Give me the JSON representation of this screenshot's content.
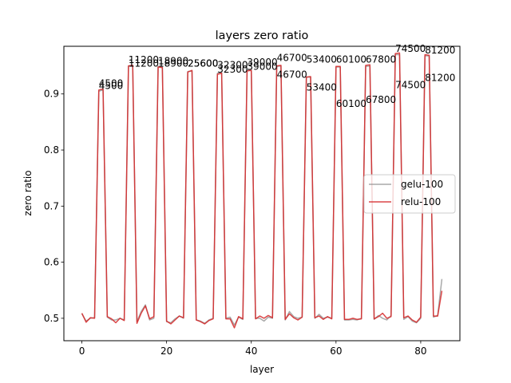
{
  "chart_data": {
    "type": "line",
    "title": "layers zero ratio",
    "xlabel": "layer",
    "ylabel": "zero ratio",
    "xlim": [
      -4.25,
      89.25
    ],
    "ylim": [
      0.46,
      0.985
    ],
    "xticks": [
      0,
      20,
      40,
      60,
      80
    ],
    "yticks": [
      0.5,
      0.6,
      0.7,
      0.8,
      0.9
    ],
    "ytick_labels": [
      "0.5",
      "0.6",
      "0.7",
      "0.8",
      "0.9"
    ],
    "grid": false,
    "legend": {
      "position": "center-right"
    },
    "colors": {
      "gelu-100": "#8c8c8c",
      "relu-100": "#d62728"
    },
    "series": [
      {
        "name": "gelu-100",
        "x": [
          0,
          1,
          2,
          3,
          4,
          5,
          6,
          7,
          8,
          9,
          10,
          11,
          12,
          13,
          14,
          15,
          16,
          17,
          18,
          19,
          20,
          21,
          22,
          23,
          24,
          25,
          26,
          27,
          28,
          29,
          30,
          31,
          32,
          33,
          34,
          35,
          36,
          37,
          38,
          39,
          40,
          41,
          42,
          43,
          44,
          45,
          46,
          47,
          48,
          49,
          50,
          51,
          52,
          53,
          54,
          55,
          56,
          57,
          58,
          59,
          60,
          61,
          62,
          63,
          64,
          65,
          66,
          67,
          68,
          69,
          70,
          71,
          72,
          73,
          74,
          75,
          76,
          77,
          78,
          79,
          80,
          81,
          82,
          83,
          84,
          85
        ],
        "y": [
          0.508,
          0.495,
          0.5,
          0.501,
          0.905,
          0.907,
          0.502,
          0.497,
          0.497,
          0.5,
          0.497,
          0.95,
          0.95,
          0.494,
          0.512,
          0.524,
          0.497,
          0.5,
          0.949,
          0.949,
          0.494,
          0.492,
          0.499,
          0.504,
          0.5,
          0.94,
          0.941,
          0.497,
          0.495,
          0.491,
          0.497,
          0.5,
          0.937,
          0.938,
          0.5,
          0.502,
          0.488,
          0.502,
          0.498,
          0.942,
          0.943,
          0.5,
          0.5,
          0.495,
          0.502,
          0.5,
          0.949,
          0.95,
          0.497,
          0.512,
          0.503,
          0.5,
          0.502,
          0.93,
          0.93,
          0.5,
          0.507,
          0.5,
          0.502,
          0.5,
          0.948,
          0.948,
          0.497,
          0.497,
          0.498,
          0.497,
          0.5,
          0.949,
          0.95,
          0.498,
          0.505,
          0.5,
          0.497,
          0.505,
          0.97,
          0.97,
          0.498,
          0.503,
          0.495,
          0.492,
          0.5,
          0.968,
          0.968,
          0.502,
          0.505,
          0.57
        ]
      },
      {
        "name": "relu-100",
        "x": [
          0,
          1,
          2,
          3,
          4,
          5,
          6,
          7,
          8,
          9,
          10,
          11,
          12,
          13,
          14,
          15,
          16,
          17,
          18,
          19,
          20,
          21,
          22,
          23,
          24,
          25,
          26,
          27,
          28,
          29,
          30,
          31,
          32,
          33,
          34,
          35,
          36,
          37,
          38,
          39,
          40,
          41,
          42,
          43,
          44,
          45,
          46,
          47,
          48,
          49,
          50,
          51,
          52,
          53,
          54,
          55,
          56,
          57,
          58,
          59,
          60,
          61,
          62,
          63,
          64,
          65,
          66,
          67,
          68,
          69,
          70,
          71,
          72,
          73,
          74,
          75,
          76,
          77,
          78,
          79,
          80,
          81,
          82,
          83,
          84,
          85
        ],
        "y": [
          0.509,
          0.493,
          0.501,
          0.5,
          0.907,
          0.909,
          0.503,
          0.499,
          0.492,
          0.5,
          0.496,
          0.95,
          0.951,
          0.491,
          0.509,
          0.522,
          0.499,
          0.503,
          0.948,
          0.947,
          0.495,
          0.49,
          0.497,
          0.504,
          0.501,
          0.939,
          0.942,
          0.497,
          0.494,
          0.49,
          0.496,
          0.499,
          0.935,
          0.937,
          0.499,
          0.499,
          0.483,
          0.503,
          0.499,
          0.941,
          0.942,
          0.499,
          0.504,
          0.5,
          0.505,
          0.501,
          0.95,
          0.951,
          0.498,
          0.508,
          0.501,
          0.497,
          0.502,
          0.93,
          0.931,
          0.501,
          0.504,
          0.498,
          0.503,
          0.499,
          0.949,
          0.949,
          0.498,
          0.498,
          0.5,
          0.498,
          0.499,
          0.951,
          0.952,
          0.499,
          0.503,
          0.509,
          0.5,
          0.503,
          0.972,
          0.973,
          0.501,
          0.504,
          0.497,
          0.493,
          0.502,
          0.97,
          0.969,
          0.504,
          0.504,
          0.549
        ]
      }
    ],
    "annotations": [
      {
        "text": "4500",
        "x": 4.0,
        "y": 0.913
      },
      {
        "text": "4500",
        "x": 4.0,
        "y": 0.909
      },
      {
        "text": "11200",
        "x": 11.0,
        "y": 0.955
      },
      {
        "text": "11200",
        "x": 11.0,
        "y": 0.949
      },
      {
        "text": "18900",
        "x": 18.0,
        "y": 0.953
      },
      {
        "text": "18900",
        "x": 18.0,
        "y": 0.949
      },
      {
        "text": "25600",
        "x": 25.0,
        "y": 0.949
      },
      {
        "text": "25600",
        "x": 25.0,
        "y": 0.949
      },
      {
        "text": "32300",
        "x": 32.0,
        "y": 0.946
      },
      {
        "text": "32300",
        "x": 32.0,
        "y": 0.938
      },
      {
        "text": "39000",
        "x": 39.0,
        "y": 0.951
      },
      {
        "text": "39000",
        "x": 39.0,
        "y": 0.943
      },
      {
        "text": "46700",
        "x": 46.0,
        "y": 0.959
      },
      {
        "text": "46700",
        "x": 46.0,
        "y": 0.929
      },
      {
        "text": "53400",
        "x": 53.0,
        "y": 0.956
      },
      {
        "text": "53400",
        "x": 53.0,
        "y": 0.906
      },
      {
        "text": "60100",
        "x": 60.0,
        "y": 0.956
      },
      {
        "text": "60100",
        "x": 60.0,
        "y": 0.877
      },
      {
        "text": "67800",
        "x": 67.0,
        "y": 0.956
      },
      {
        "text": "67800",
        "x": 67.0,
        "y": 0.884
      },
      {
        "text": "74500",
        "x": 74.0,
        "y": 0.975
      },
      {
        "text": "74500",
        "x": 74.0,
        "y": 0.91
      },
      {
        "text": "81200",
        "x": 81.0,
        "y": 0.972
      },
      {
        "text": "81200",
        "x": 81.0,
        "y": 0.923
      }
    ]
  }
}
